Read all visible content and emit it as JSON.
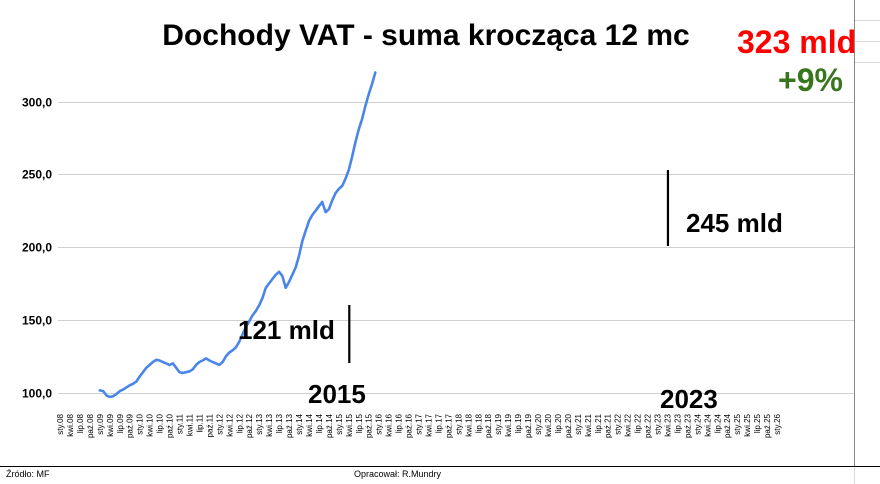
{
  "chart_data": {
    "type": "line",
    "title": "Dochody VAT - suma krocząca 12 mc",
    "xlabel": "",
    "ylabel": "",
    "ylim": [
      88,
      332
    ],
    "yticks": [
      "100,0",
      "150,0",
      "200,0",
      "250,0",
      "300,0"
    ],
    "ytick_values": [
      100,
      150,
      200,
      250,
      300
    ],
    "grid": true,
    "legend": "none",
    "line_color": "#4a86e8",
    "x_tick_labels": [
      "sty.08",
      "kwi.08",
      "lip.08",
      "paź.08",
      "sty.09",
      "kwi.09",
      "lip.09",
      "paź.09",
      "sty.10",
      "kwi.10",
      "lip.10",
      "paź.10",
      "sty.11",
      "kwi.11",
      "lip.11",
      "paź.11",
      "sty.12",
      "kwi.12",
      "lip.12",
      "paź.12",
      "sty.13",
      "kwi.13",
      "lip.13",
      "paź.13",
      "sty.14",
      "kwi.14",
      "lip.14",
      "paź.14",
      "sty.15",
      "kwi.15",
      "lip.15",
      "paź.15",
      "sty.16",
      "kwi.16",
      "lip.16",
      "paź.16",
      "sty.17",
      "kwi.17",
      "lip.17",
      "paź.17",
      "sty.18",
      "kwi.18",
      "lip.18",
      "paź.18",
      "sty.19",
      "kwi.19",
      "lip.19",
      "paź.19",
      "sty.20",
      "kwi.20",
      "lip.20",
      "paź.20",
      "sty.21",
      "kwi.21",
      "lip.21",
      "paź.21",
      "sty.22",
      "kwi.22",
      "lip.22",
      "paź.22",
      "sty.23",
      "kwi.23",
      "lip.23",
      "paź.23",
      "sty.24",
      "kwi.24",
      "lip.24",
      "paź.24",
      "sty.25",
      "kwi.25",
      "lip.25",
      "paź.25",
      "sty.26"
    ],
    "series": [
      {
        "x_start": "sty.09",
        "step_months": 3,
        "values": [
          101.5,
          101,
          98,
          97,
          97.5,
          99,
          101,
          102,
          103.5,
          105,
          106,
          107.5,
          111,
          114,
          117,
          119,
          121,
          122.5,
          122,
          121,
          120,
          119,
          120,
          117,
          114,
          113.5,
          114,
          114.5,
          116,
          119,
          121,
          122,
          123.5,
          122,
          121,
          120,
          119,
          121,
          125,
          127.5,
          129,
          131,
          135,
          140,
          145,
          149,
          153,
          156,
          160,
          165,
          172,
          175,
          178,
          181,
          183,
          180,
          172,
          176,
          181,
          186,
          194,
          204,
          211,
          218,
          222,
          225,
          228,
          231,
          224,
          226,
          232,
          237,
          240,
          242,
          247,
          253,
          262,
          272,
          281,
          288,
          297,
          305,
          312,
          320
        ]
      }
    ],
    "annotations": [
      {
        "label": "121 mld",
        "year_label": "2015",
        "x": "kwi.15",
        "y": 121
      },
      {
        "label": "245 mld",
        "year_label": "2023",
        "x": "kwi.23",
        "y": 245
      },
      {
        "label": "323 mld",
        "x": "sty.26",
        "y": 323,
        "color": "#ff0000"
      },
      {
        "label": "+9%",
        "color": "#38761d"
      }
    ]
  },
  "footer": {
    "source": "Źródło: MF",
    "author": "Opracował: R.Mundry"
  }
}
